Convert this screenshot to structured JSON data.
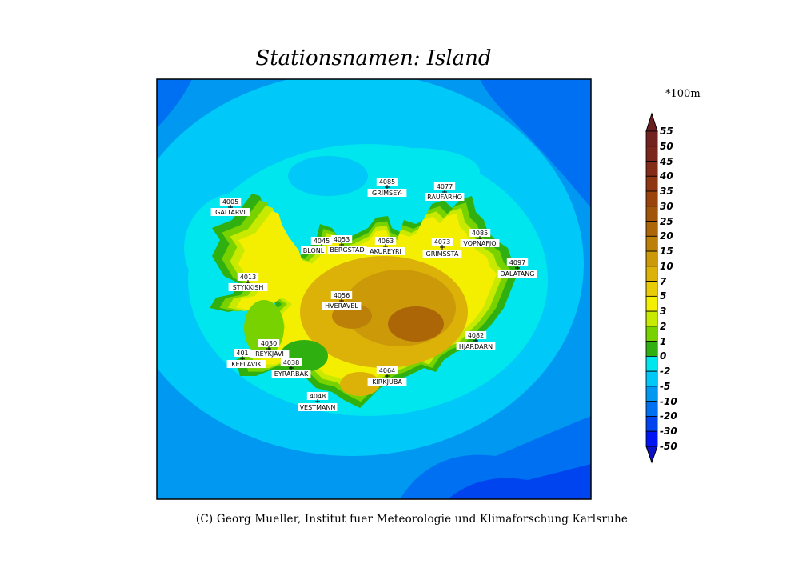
{
  "title": "Stationsnamen: Island",
  "unit_label": "*100m",
  "footer": "(C) Georg Mueller, Institut fuer Meteorologie und Klimaforschung Karlsruhe",
  "colorbar": {
    "labels": [
      "55",
      "50",
      "45",
      "40",
      "35",
      "30",
      "25",
      "20",
      "15",
      "10",
      "7",
      "5",
      "3",
      "2",
      "1",
      "0",
      "-2",
      "-5",
      "-10",
      "-20",
      "-30",
      "-50"
    ],
    "band_colors": [
      "#6c2020",
      "#722320",
      "#7a261c",
      "#842c18",
      "#903612",
      "#9a440c",
      "#a2540a",
      "#ac6608",
      "#bc8008",
      "#cc9a08",
      "#dcb208",
      "#e8cc08",
      "#f4ee00",
      "#c8ea00",
      "#78d200",
      "#30b010",
      "#00e6ee",
      "#00c8f8",
      "#0098f0",
      "#0070f2",
      "#0044f0",
      "#0014f4"
    ],
    "top_arrow_color": "#6a1e1e",
    "bottom_arrow_color": "#0a10c8"
  },
  "stations": [
    {
      "id": "4005",
      "name": "GALTARVI"
    },
    {
      "id": "4085",
      "name": "GRIMSEY-"
    },
    {
      "id": "4077",
      "name": "RAUFARHO"
    },
    {
      "id": "4045",
      "name": "BLONL"
    },
    {
      "id": "4053",
      "name": "BERGSTAD"
    },
    {
      "id": "4063",
      "name": "AKUREYRI"
    },
    {
      "id": "4073",
      "name": "GRIMSSTA"
    },
    {
      "id": "4085",
      "name": "VOPNAFJO"
    },
    {
      "id": "4097",
      "name": "DALATANG"
    },
    {
      "id": "4013",
      "name": "STYKKISH"
    },
    {
      "id": "4056",
      "name": "HVERAVEL"
    },
    {
      "id": "4082",
      "name": "HJARDARN"
    },
    {
      "id": "4030",
      "name": "REYKJAVI"
    },
    {
      "id": "401",
      "name": "KEFLAVIK"
    },
    {
      "id": "4038",
      "name": "EYRARBAK"
    },
    {
      "id": "4064",
      "name": "KIRKJUBA"
    },
    {
      "id": "4048",
      "name": "VESTMANN"
    }
  ]
}
